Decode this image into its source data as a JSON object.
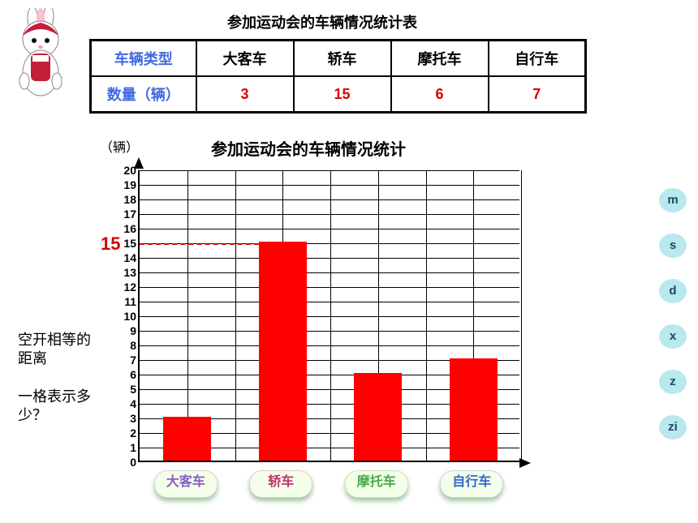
{
  "main_title": "参加运动会的车辆情况统计表",
  "table": {
    "row1_label": "车辆类型",
    "row2_label": "数量（辆）",
    "categories": [
      "大客车",
      "轿车",
      "摩托车",
      "自行车"
    ],
    "values": [
      "3",
      "15",
      "6",
      "7"
    ],
    "label_color": "#4169e1",
    "value_color": "#d80000"
  },
  "chart": {
    "y_unit": "（辆）",
    "title": "参加运动会的车辆情况统计",
    "ylim": [
      0,
      20
    ],
    "ytick_step": 1,
    "bar_color": "#ff0000",
    "grid_color": "#000000",
    "bg_color": "#ffffff",
    "num_x_cells": 8,
    "bars": [
      {
        "cat": "大客车",
        "val": 3,
        "cell_start": 0
      },
      {
        "cat": "轿车",
        "val": 15,
        "cell_start": 2
      },
      {
        "cat": "摩托车",
        "val": 6,
        "cell_start": 4
      },
      {
        "cat": "自行车",
        "val": 7,
        "cell_start": 6
      }
    ],
    "highlight_value": "15",
    "highlight_color": "#d80000",
    "cat_label_colors": [
      "#8a5cc8",
      "#c0326e",
      "#4aa84a",
      "#3366cc"
    ],
    "cat_label_bg": "#f3ffe8"
  },
  "notes": {
    "n1": "空开相等的距离",
    "n2": "一格表示多少？"
  },
  "side_buttons": [
    "m",
    "s",
    "d",
    "x",
    "z",
    "zi"
  ],
  "side_btn_bg": "#b9e8ef"
}
